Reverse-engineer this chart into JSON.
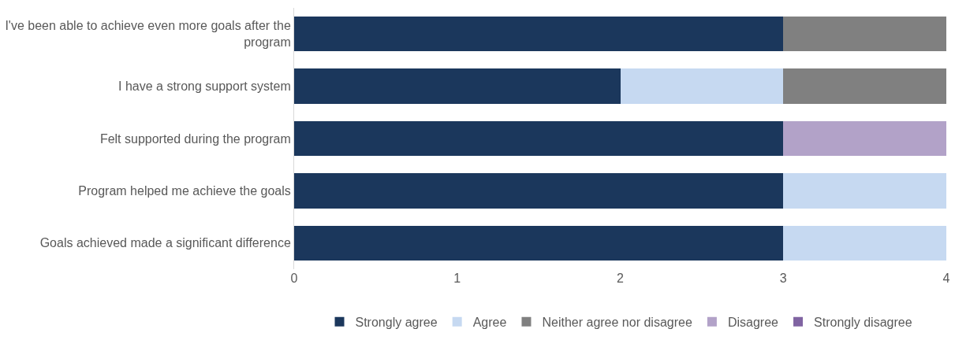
{
  "chart_data": {
    "type": "bar",
    "orientation": "horizontal",
    "stacked": true,
    "categories": [
      "I've been able to achieve even more goals after the program",
      "I have a strong support system",
      "Felt supported during the program",
      "Program helped me achieve the goals",
      "Goals achieved made a significant difference"
    ],
    "series": [
      {
        "name": "Strongly agree",
        "color": "#1b375c",
        "values": [
          3,
          2,
          3,
          3,
          3
        ]
      },
      {
        "name": "Agree",
        "color": "#c6d9f1",
        "values": [
          0,
          1,
          0,
          1,
          1
        ]
      },
      {
        "name": "Neither agree nor disagree",
        "color": "#808080",
        "values": [
          1,
          1,
          0,
          0,
          0
        ]
      },
      {
        "name": "Disagree",
        "color": "#b2a2c8",
        "values": [
          0,
          0,
          1,
          0,
          0
        ]
      },
      {
        "name": "Strongly disagree",
        "color": "#8064a2",
        "values": [
          0,
          0,
          0,
          0,
          0
        ]
      }
    ],
    "xlim": [
      0,
      4
    ],
    "xticks": [
      0,
      1,
      2,
      3,
      4
    ],
    "legend": "bottom"
  }
}
